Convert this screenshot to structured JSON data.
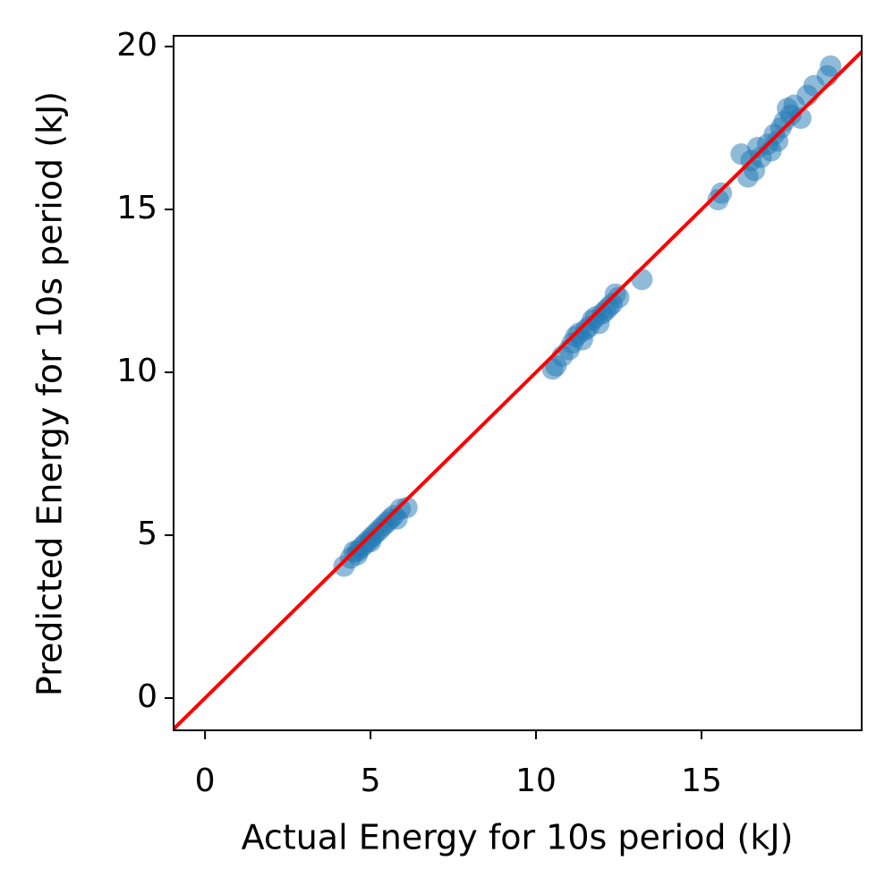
{
  "chart_data": {
    "type": "scatter",
    "xlabel": "Actual Energy for 10s period (kJ)",
    "ylabel": "Predicted Energy for 10s period (kJ)",
    "xlim": [
      -0.95,
      19.84
    ],
    "ylim": [
      -0.99,
      20.33
    ],
    "xticks": [
      0,
      5,
      10,
      15
    ],
    "yticks": [
      0,
      5,
      10,
      15,
      20
    ],
    "series": [
      {
        "type": "scatter",
        "color": "#1f77b4",
        "x": [
          4.2,
          4.4,
          4.5,
          4.6,
          4.7,
          4.8,
          4.9,
          5.0,
          5.1,
          5.2,
          5.3,
          5.4,
          5.5,
          5.6,
          5.7,
          5.8,
          5.9,
          6.1,
          4.6,
          5.0,
          10.5,
          10.6,
          10.8,
          11.0,
          11.1,
          11.2,
          11.3,
          11.4,
          11.5,
          11.6,
          11.7,
          11.8,
          11.9,
          12.0,
          12.1,
          12.2,
          12.3,
          12.4,
          12.5,
          13.2,
          15.5,
          15.6,
          16.2,
          16.4,
          16.5,
          16.6,
          16.7,
          16.8,
          17.0,
          17.1,
          17.2,
          17.3,
          17.4,
          17.5,
          17.6,
          17.7,
          17.8,
          18.0,
          18.2,
          18.4,
          18.8,
          18.9
        ],
        "values": [
          4.05,
          4.3,
          4.5,
          4.4,
          4.6,
          4.7,
          4.8,
          4.9,
          5.0,
          5.1,
          5.2,
          5.3,
          5.4,
          5.5,
          5.6,
          5.5,
          5.8,
          5.85,
          4.5,
          4.8,
          10.1,
          10.2,
          10.5,
          10.7,
          10.9,
          11.1,
          11.2,
          11.0,
          11.3,
          11.4,
          11.6,
          11.7,
          11.5,
          11.8,
          11.9,
          12.0,
          12.1,
          12.4,
          12.3,
          12.85,
          15.3,
          15.5,
          16.7,
          16.0,
          16.5,
          16.2,
          16.9,
          16.6,
          17.0,
          16.8,
          17.3,
          17.1,
          17.5,
          17.7,
          18.1,
          17.9,
          18.2,
          17.8,
          18.5,
          18.8,
          19.1,
          19.4
        ]
      },
      {
        "type": "line",
        "color": "#ff0000",
        "x": [
          -0.95,
          19.84
        ],
        "values": [
          -0.95,
          19.84
        ]
      }
    ]
  }
}
